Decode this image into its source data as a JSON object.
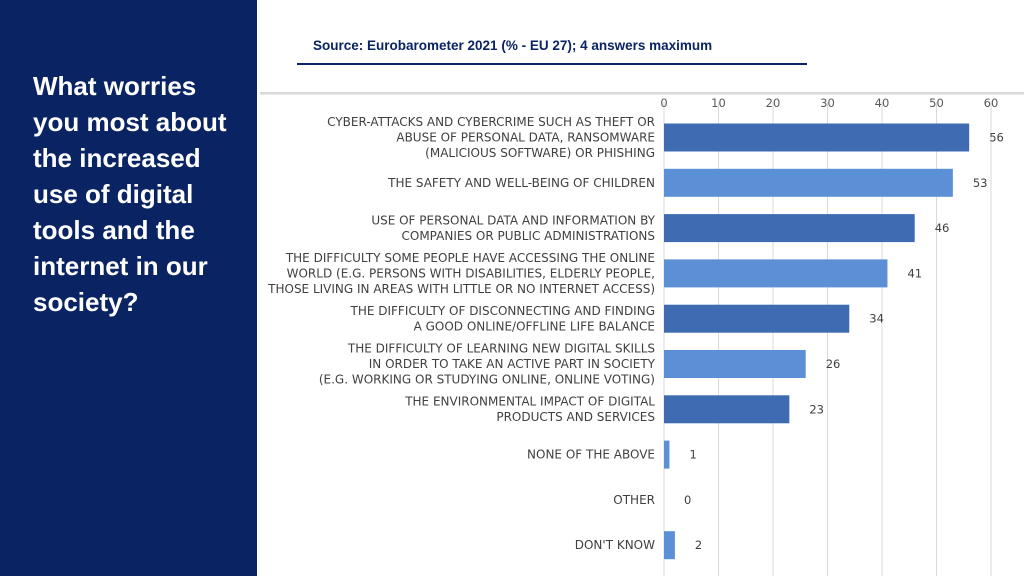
{
  "question": "What worries you most about the increased use of digital tools and the internet in our society?",
  "source": "Source: Eurobarometer 2021 (% - EU 27); 4 answers maximum",
  "colors": {
    "panel": "#0a2463",
    "bar_dark": "#3f6bb3",
    "bar_light": "#5b8fd6"
  },
  "chart_data": {
    "type": "bar",
    "orientation": "horizontal",
    "xlim": [
      0,
      60
    ],
    "ticks": [
      0,
      10,
      20,
      30,
      40,
      50,
      60
    ],
    "grid": true,
    "categories": [
      [
        "CYBER-ATTACKS AND CYBERCRIME SUCH AS THEFT OR",
        "ABUSE OF PERSONAL DATA, RANSOMWARE",
        "(MALICIOUS SOFTWARE) OR PHISHING"
      ],
      [
        "THE SAFETY AND WELL-BEING OF CHILDREN"
      ],
      [
        "USE OF PERSONAL DATA AND INFORMATION BY",
        "COMPANIES OR PUBLIC ADMINISTRATIONS"
      ],
      [
        "THE DIFFICULTY SOME PEOPLE HAVE ACCESSING THE ONLINE",
        "WORLD (E.G. PERSONS WITH DISABILITIES, ELDERLY PEOPLE,",
        "THOSE LIVING IN AREAS WITH LITTLE OR NO INTERNET ACCESS)"
      ],
      [
        "THE DIFFICULTY OF DISCONNECTING AND FINDING",
        "A GOOD ONLINE/OFFLINE LIFE BALANCE"
      ],
      [
        "THE DIFFICULTY OF LEARNING NEW DIGITAL SKILLS",
        "IN ORDER TO TAKE AN ACTIVE PART IN SOCIETY",
        "(E.G. WORKING OR STUDYING ONLINE, ONLINE VOTING)"
      ],
      [
        "THE ENVIRONMENTAL IMPACT OF DIGITAL",
        "PRODUCTS AND SERVICES"
      ],
      [
        "NONE OF THE ABOVE"
      ],
      [
        "OTHER"
      ],
      [
        "DON'T KNOW"
      ]
    ],
    "values": [
      56,
      53,
      46,
      41,
      34,
      26,
      23,
      1,
      0,
      2
    ],
    "bar_colors": [
      "#3f6bb3",
      "#5b8fd6",
      "#3f6bb3",
      "#5b8fd6",
      "#3f6bb3",
      "#5b8fd6",
      "#3f6bb3",
      "#5b8fd6",
      "#3f6bb3",
      "#5b8fd6"
    ]
  }
}
